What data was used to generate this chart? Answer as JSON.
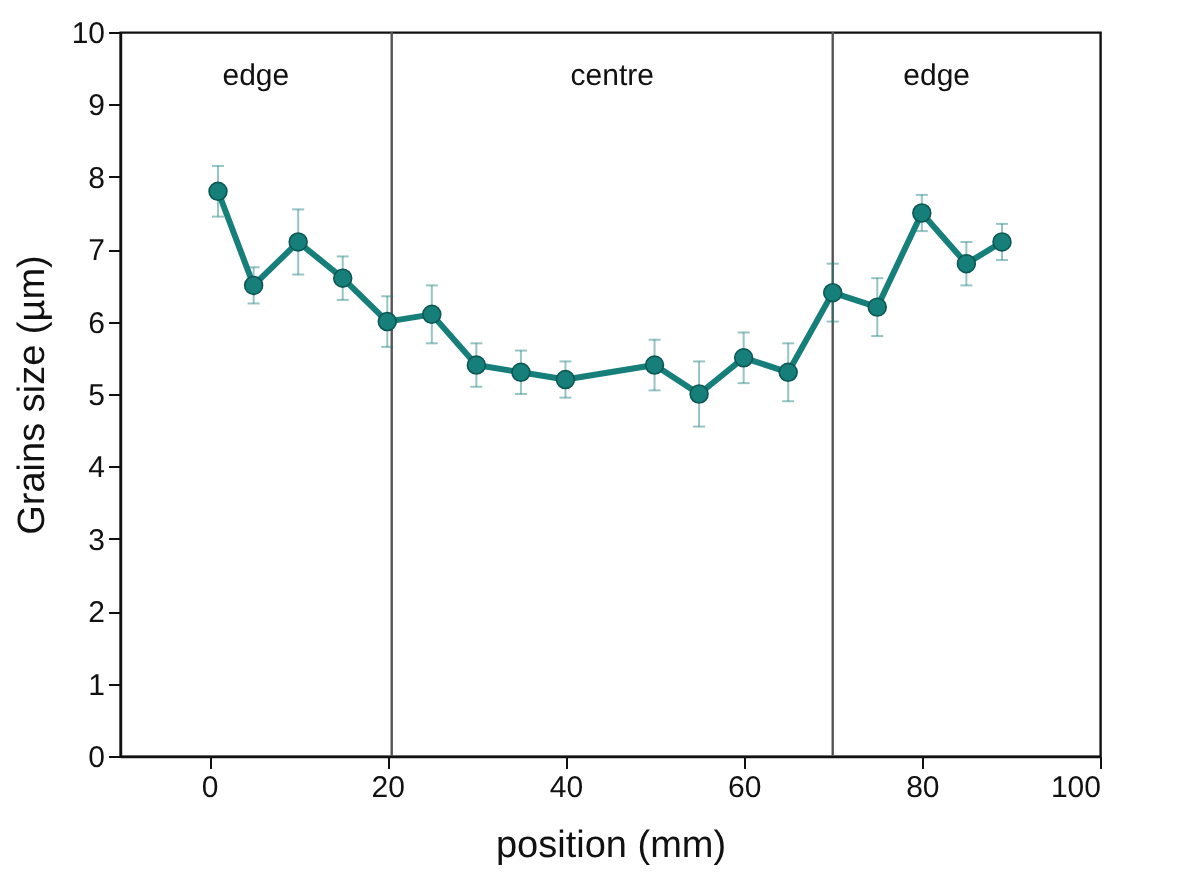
{
  "chart_data": {
    "type": "line",
    "xlabel": "position (mm)",
    "ylabel": "Grains size (µm)",
    "x": [
      1,
      5,
      10,
      15,
      20,
      25,
      30,
      35,
      40,
      50,
      55,
      60,
      65,
      70,
      75,
      80,
      85,
      89
    ],
    "series": [
      {
        "color": "#167f7a",
        "values": [
          7.8,
          6.5,
          7.1,
          6.6,
          6.0,
          6.1,
          5.4,
          5.3,
          5.2,
          5.4,
          5.0,
          5.5,
          5.3,
          6.4,
          6.2,
          7.5,
          6.8,
          7.1
        ],
        "errors": [
          0.35,
          0.25,
          0.45,
          0.3,
          0.35,
          0.4,
          0.3,
          0.3,
          0.25,
          0.35,
          0.45,
          0.35,
          0.4,
          0.4,
          0.4,
          0.25,
          0.3,
          0.25
        ]
      }
    ],
    "xlim": [
      -10,
      100
    ],
    "xticks": [
      0,
      20,
      40,
      60,
      80,
      100
    ],
    "ylim": [
      0,
      10
    ],
    "yticks": [
      0,
      1,
      2,
      3,
      4,
      5,
      6,
      7,
      8,
      9,
      10
    ],
    "ref_lines": [
      {
        "axis": "x",
        "value": 20.5,
        "color": "#555555"
      },
      {
        "axis": "x",
        "value": 70,
        "color": "#555555"
      }
    ],
    "annotations": [
      "edge",
      "centre",
      "edge"
    ],
    "marker": "circle",
    "line_style": "solid"
  }
}
